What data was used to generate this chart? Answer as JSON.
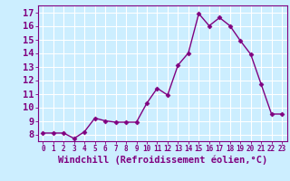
{
  "x": [
    0,
    1,
    2,
    3,
    4,
    5,
    6,
    7,
    8,
    9,
    10,
    11,
    12,
    13,
    14,
    15,
    16,
    17,
    18,
    19,
    20,
    21,
    22,
    23
  ],
  "y": [
    8.1,
    8.1,
    8.1,
    7.7,
    8.2,
    9.2,
    9.0,
    8.9,
    8.9,
    8.9,
    10.3,
    11.4,
    10.9,
    13.1,
    14.0,
    16.9,
    16.0,
    16.6,
    16.0,
    14.9,
    13.9,
    11.7,
    9.5,
    9.5
  ],
  "line_color": "#800080",
  "marker": "D",
  "markersize": 2.5,
  "linewidth": 1.0,
  "bg_color": "#cceeff",
  "grid_color": "#ffffff",
  "xlabel": "Windchill (Refroidissement éolien,°C)",
  "xlim": [
    -0.5,
    23.5
  ],
  "ylim": [
    7.5,
    17.5
  ],
  "yticks": [
    8,
    9,
    10,
    11,
    12,
    13,
    14,
    15,
    16,
    17
  ],
  "xticks": [
    0,
    1,
    2,
    3,
    4,
    5,
    6,
    7,
    8,
    9,
    10,
    11,
    12,
    13,
    14,
    15,
    16,
    17,
    18,
    19,
    20,
    21,
    22,
    23
  ],
  "tick_color": "#800080",
  "label_color": "#800080",
  "ytick_fontsize": 7.5,
  "xtick_fontsize": 5.5,
  "xlabel_fontsize": 7.5
}
